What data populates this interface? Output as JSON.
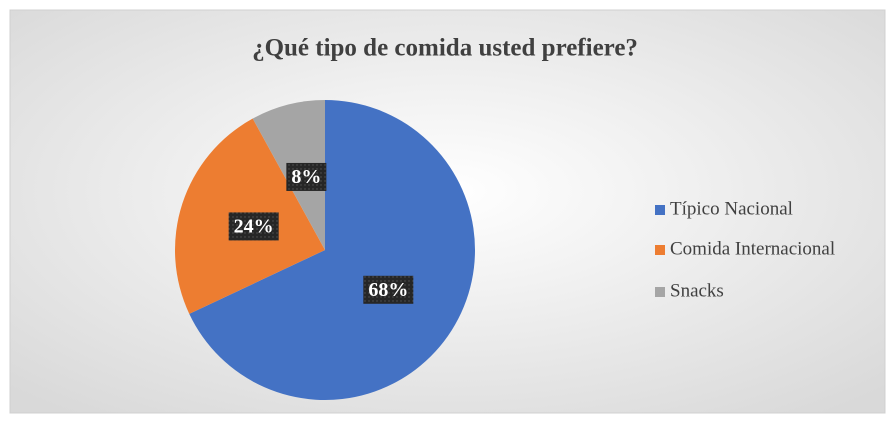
{
  "chart_data": {
    "type": "pie",
    "title": "¿Qué tipo de comida usted prefiere?",
    "categories": [
      "Típico Nacional",
      "Comida Internacional",
      "Snacks"
    ],
    "values": [
      68,
      24,
      8
    ],
    "value_labels": [
      "68%",
      "24%",
      "8%"
    ],
    "colors": [
      "#4472c4",
      "#ed7d31",
      "#a5a5a5"
    ],
    "legend": "right"
  }
}
